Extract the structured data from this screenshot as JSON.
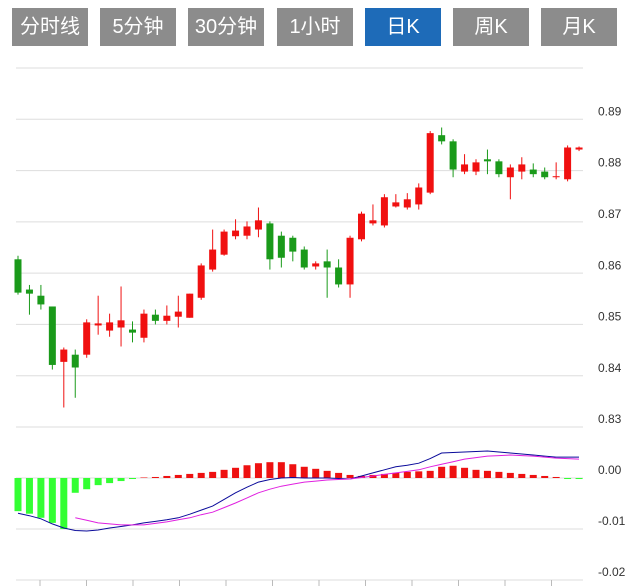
{
  "tabs": {
    "items": [
      "分时线",
      "5分钟",
      "30分钟",
      "1小时",
      "日K",
      "周K",
      "月K"
    ],
    "active": 4
  },
  "chart_data": [
    {
      "type": "candlestick",
      "open": [
        0.8627,
        0.8568,
        0.8556,
        0.8535,
        0.8427,
        0.8441,
        0.8441,
        0.8498,
        0.8488,
        0.8494,
        0.849,
        0.8474,
        0.8519,
        0.8507,
        0.8515,
        0.8513,
        0.8552,
        0.8607,
        0.8636,
        0.8672,
        0.8673,
        0.8685,
        0.8697,
        0.8673,
        0.8669,
        0.8646,
        0.8613,
        0.8623,
        0.8611,
        0.8578,
        0.8666,
        0.8697,
        0.8693,
        0.873,
        0.8728,
        0.8734,
        0.8757,
        0.8869,
        0.8857,
        0.8798,
        0.8798,
        0.8822,
        0.8818,
        0.8787,
        0.8798,
        0.8802,
        0.8798,
        0.8787,
        0.8783,
        0.8841
      ],
      "high": [
        0.8634,
        0.8577,
        0.8577,
        0.8535,
        0.8455,
        0.8451,
        0.851,
        0.8556,
        0.8521,
        0.8574,
        0.8506,
        0.8529,
        0.8529,
        0.8537,
        0.8556,
        0.856,
        0.8619,
        0.8685,
        0.8685,
        0.8705,
        0.8701,
        0.8728,
        0.8701,
        0.8681,
        0.8673,
        0.8652,
        0.8623,
        0.8646,
        0.8627,
        0.8673,
        0.872,
        0.8734,
        0.8754,
        0.8754,
        0.8756,
        0.8775,
        0.8877,
        0.8884,
        0.8861,
        0.8832,
        0.8822,
        0.8841,
        0.8822,
        0.8812,
        0.8826,
        0.8814,
        0.8806,
        0.8816,
        0.8849,
        0.8847
      ],
      "low": [
        0.8558,
        0.8519,
        0.8529,
        0.8412,
        0.8338,
        0.8357,
        0.8435,
        0.848,
        0.8476,
        0.8457,
        0.8465,
        0.8465,
        0.85,
        0.85,
        0.8494,
        0.8513,
        0.8548,
        0.8603,
        0.8634,
        0.8666,
        0.8666,
        0.867,
        0.8607,
        0.8611,
        0.8623,
        0.8607,
        0.8607,
        0.8552,
        0.8572,
        0.8552,
        0.8662,
        0.8693,
        0.8689,
        0.8728,
        0.8724,
        0.8724,
        0.8754,
        0.8851,
        0.8787,
        0.8793,
        0.8791,
        0.8793,
        0.8787,
        0.8744,
        0.8783,
        0.8787,
        0.8783,
        0.8783,
        0.8779,
        0.8838
      ],
      "close": [
        0.8562,
        0.856,
        0.8539,
        0.8421,
        0.8451,
        0.8416,
        0.8504,
        0.8502,
        0.8504,
        0.8508,
        0.8484,
        0.8521,
        0.8507,
        0.8517,
        0.8525,
        0.856,
        0.8615,
        0.8646,
        0.8681,
        0.8683,
        0.8691,
        0.8703,
        0.8627,
        0.863,
        0.8642,
        0.8611,
        0.8619,
        0.8611,
        0.8578,
        0.8669,
        0.8716,
        0.8703,
        0.8748,
        0.8738,
        0.8744,
        0.8767,
        0.8873,
        0.8857,
        0.8802,
        0.8812,
        0.8816,
        0.8818,
        0.8793,
        0.8806,
        0.8812,
        0.8793,
        0.8787,
        0.8789,
        0.8845,
        0.8845
      ],
      "color_up": "#f01010",
      "color_down": "#1a9a1a",
      "ylim": [
        0.83,
        0.9
      ],
      "yticks": [
        0.83,
        0.84,
        0.85,
        0.86,
        0.87,
        0.88,
        0.89
      ],
      "grid": true
    },
    {
      "type": "macd",
      "ylim": [
        -0.02,
        0.01
      ],
      "yticks": [
        -0.02,
        -0.01,
        {
          "value": 0,
          "label": "0.00"
        }
      ],
      "grid": true,
      "series": [
        {
          "type": "bar",
          "color_up": "#ee1111",
          "color_down": "#33ff33",
          "values": [
            -0.0065,
            -0.007,
            -0.0078,
            -0.0088,
            -0.01,
            -0.0029,
            -0.0022,
            -0.0014,
            -0.001,
            -0.0006,
            -0.0002,
            0.0001,
            0.0002,
            0.0004,
            0.0006,
            0.0008,
            0.001,
            0.0012,
            0.0016,
            0.002,
            0.0025,
            0.0029,
            0.0031,
            0.0031,
            0.0027,
            0.0022,
            0.0018,
            0.0014,
            0.001,
            0.0006,
            0.0004,
            0.0006,
            0.0008,
            0.001,
            0.0012,
            0.0013,
            0.0014,
            0.0022,
            0.0024,
            0.002,
            0.0016,
            0.0014,
            0.0012,
            0.001,
            0.0008,
            0.0006,
            0.0004,
            0.0002,
            -0.0002,
            -0.0002
          ]
        },
        {
          "type": "line",
          "color": "#0a0a9a",
          "values": [
            -0.0069,
            -0.0074,
            -0.008,
            -0.009,
            -0.0098,
            -0.0103,
            -0.0104,
            -0.0102,
            -0.0098,
            -0.0095,
            -0.0092,
            -0.0088,
            -0.0085,
            -0.0082,
            -0.0078,
            -0.0071,
            -0.0063,
            -0.0055,
            -0.0042,
            -0.0029,
            -0.0018,
            -0.0008,
            -0.0003,
            0.0,
            0.0001,
            0.0,
            0.0,
            0.0,
            -0.0001,
            -0.0002,
            0.0004,
            0.001,
            0.0016,
            0.0022,
            0.0025,
            0.0029,
            0.0038,
            0.0049,
            0.005,
            0.0051,
            0.0052,
            0.0053,
            0.0051,
            0.0049,
            0.0047,
            0.0045,
            0.0043,
            0.0041,
            0.0041,
            0.0041
          ]
        },
        {
          "type": "line",
          "color": "#e020e0",
          "values": [
            null,
            null,
            null,
            null,
            null,
            -0.0078,
            -0.0083,
            -0.0088,
            -0.009,
            -0.0092,
            -0.0092,
            -0.0092,
            -0.0089,
            -0.0086,
            -0.0082,
            -0.0078,
            -0.0072,
            -0.0067,
            -0.0058,
            -0.0049,
            -0.0039,
            -0.0029,
            -0.0022,
            -0.0016,
            -0.0012,
            -0.0008,
            -0.0006,
            -0.0004,
            -0.0003,
            -0.0002,
            0.0001,
            0.0004,
            0.0007,
            0.001,
            0.0013,
            0.0016,
            0.0022,
            0.0027,
            0.0032,
            0.0037,
            0.004,
            0.0043,
            0.0044,
            0.0045,
            0.0044,
            0.0043,
            0.0041,
            0.0039,
            0.0038,
            0.0037
          ]
        }
      ]
    }
  ]
}
